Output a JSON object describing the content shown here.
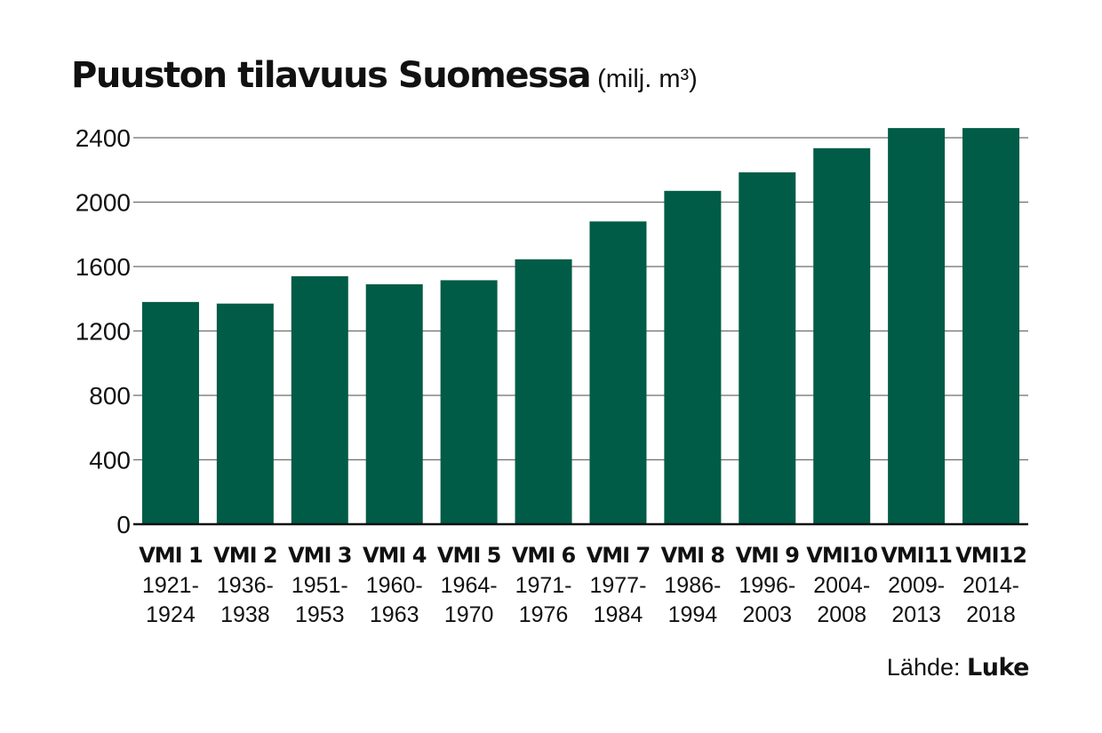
{
  "chart_data": {
    "type": "bar",
    "title": "Puuston tilavuus Suomessa",
    "unit": "(milj. m³)",
    "categories": [
      "VMI 1",
      "VMI 2",
      "VMI 3",
      "VMI 4",
      "VMI 5",
      "VMI 6",
      "VMI 7",
      "VMI 8",
      "VMI 9",
      "VMI10",
      "VMI11",
      "VMI12"
    ],
    "periods": [
      [
        "1921-",
        "1924"
      ],
      [
        "1936-",
        "1938"
      ],
      [
        "1951-",
        "1953"
      ],
      [
        "1960-",
        "1963"
      ],
      [
        "1964-",
        "1970"
      ],
      [
        "1971-",
        "1976"
      ],
      [
        "1977-",
        "1984"
      ],
      [
        "1986-",
        "1994"
      ],
      [
        "1996-",
        "2003"
      ],
      [
        "2004-",
        "2008"
      ],
      [
        "2009-",
        "2013"
      ],
      [
        "2014-",
        "2018"
      ]
    ],
    "values": [
      1380,
      1370,
      1540,
      1490,
      1515,
      1645,
      1880,
      2070,
      2185,
      2335,
      2460,
      2460
    ],
    "yticks": [
      0,
      400,
      800,
      1200,
      1600,
      2000,
      2400
    ],
    "ylim": [
      0,
      2400
    ],
    "grid": true,
    "bar_color": "#005C46",
    "source_prefix": "Lähde:",
    "source_name": "Luke"
  }
}
